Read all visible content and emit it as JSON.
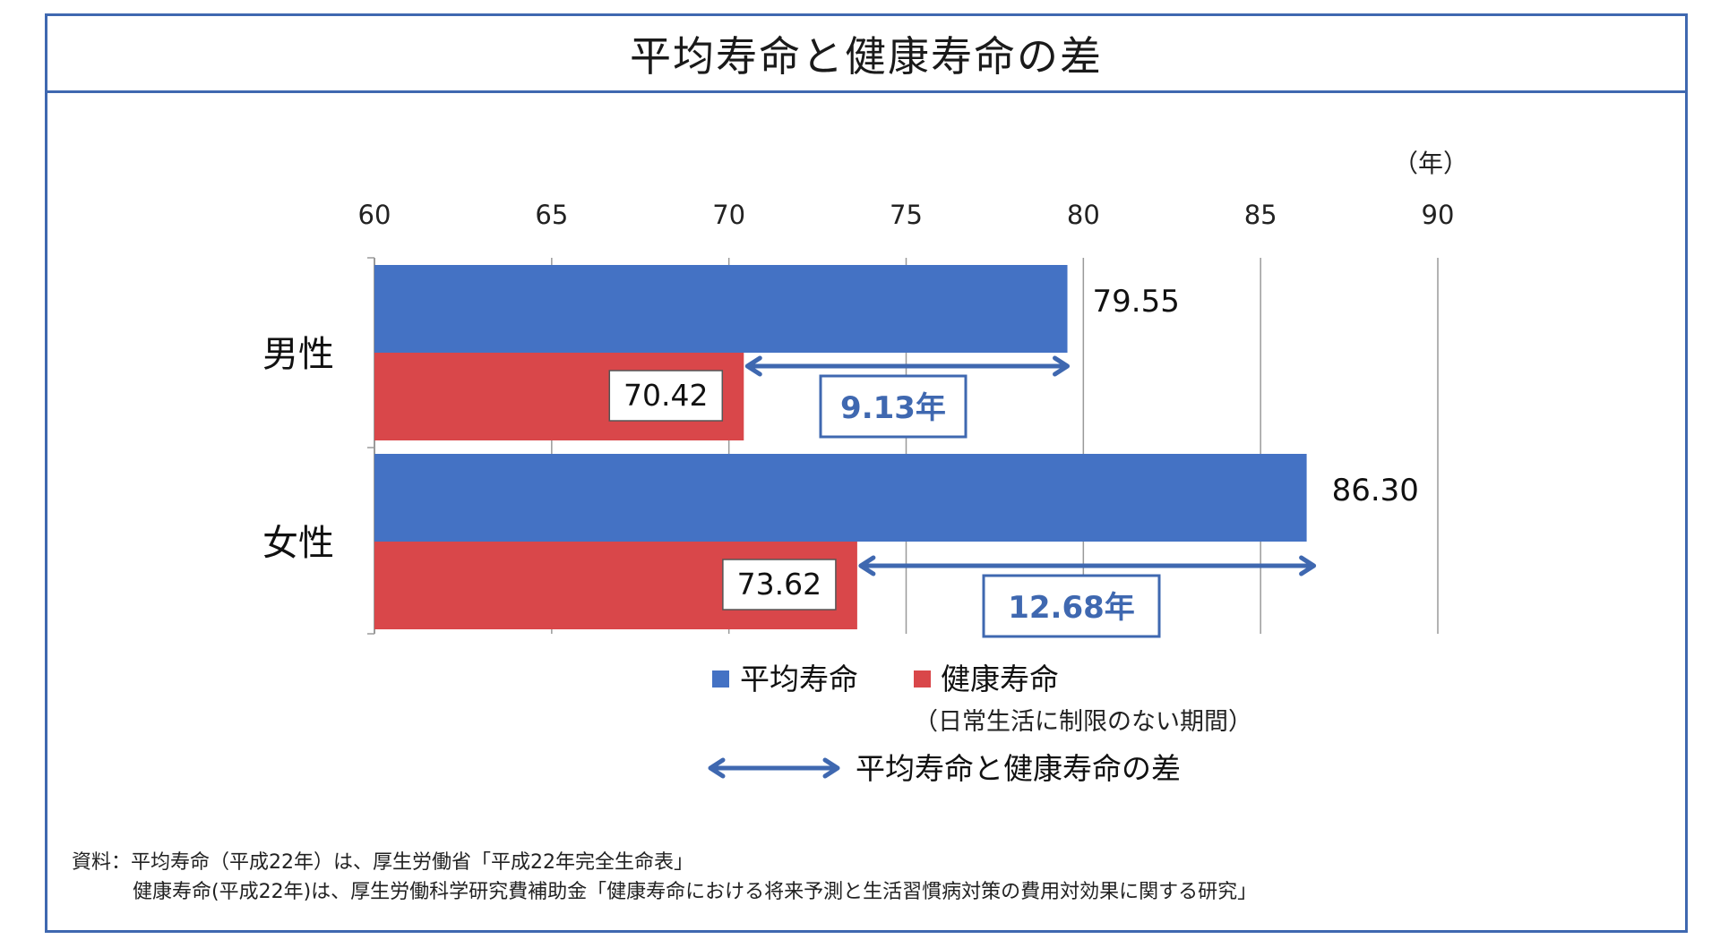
{
  "title": "平均寿命と健康寿命の差",
  "chart_data": {
    "type": "bar",
    "orientation": "horizontal",
    "unit_label": "（年）",
    "xlim": [
      60,
      90
    ],
    "xticks": [
      60,
      65,
      70,
      75,
      80,
      85,
      90
    ],
    "grid": true,
    "categories": [
      "男性",
      "女性"
    ],
    "series": [
      {
        "name": "平均寿命",
        "color": "#4472c4",
        "values": [
          79.55,
          86.3
        ],
        "labels": [
          "79.55",
          "86.30"
        ]
      },
      {
        "name": "健康寿命",
        "color": "#d9474a",
        "values": [
          70.42,
          73.62
        ],
        "labels": [
          "70.42",
          "73.62"
        ]
      }
    ],
    "differences": [
      "9.13年",
      "12.68年"
    ],
    "legend": {
      "avg": "平均寿命",
      "healthy": "健康寿命",
      "healthy_note": "（日常生活に制限のない期間）",
      "diff": "平均寿命と健康寿命の差"
    },
    "accent": "#3f68b0"
  },
  "source": {
    "line1": "資料：平均寿命（平成22年）は、厚生労働省「平成22年完全生命表」",
    "line2": "健康寿命(平成22年)は、厚生労働科学研究費補助金「健康寿命における将来予測と生活習慣病対策の費用対効果に関する研究」"
  }
}
